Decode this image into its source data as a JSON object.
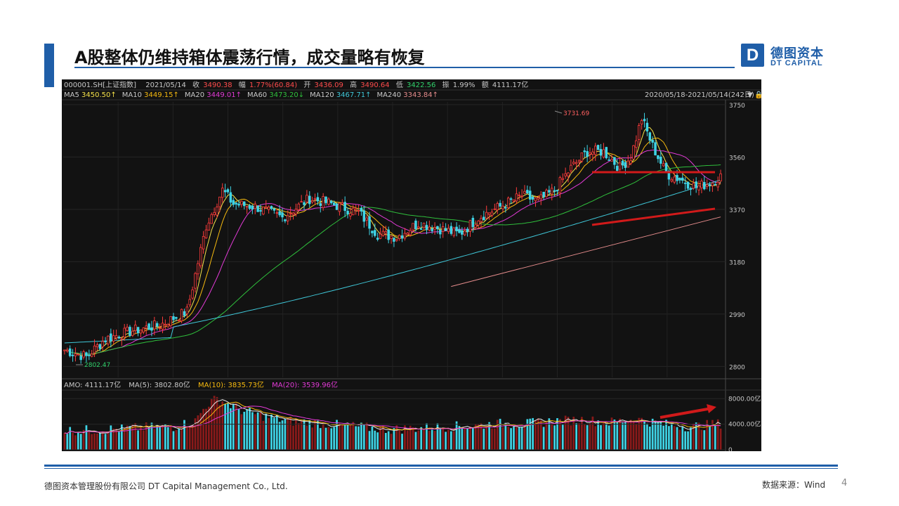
{
  "slide": {
    "title": "A股整体仍维持箱体震荡行情，成交量略有恢复",
    "logo_mark": "D",
    "logo_cn": "德图资本",
    "logo_en": "DT CAPITAL",
    "footer_company": "德图资本管理股份有限公司  DT Capital  Management  Co., Ltd.",
    "footer_source": "数据来源：Wind",
    "page_number": "4"
  },
  "chart_data": {
    "type": "candlestick",
    "header": {
      "code": "000001.SH[上证指数]",
      "date": "2021/05/14",
      "close_label": "收",
      "close": "3490.38",
      "change_label": "幅",
      "change": "1.77%(60.84)",
      "open_label": "开",
      "open": "3436.09",
      "high_label": "高",
      "high": "3490.64",
      "low_label": "低",
      "low": "3422.56",
      "amplitude_label": "振",
      "amplitude": "1.99%",
      "amount_label": "额",
      "amount": "4111.17亿"
    },
    "ma_legend": [
      {
        "name": "MA5",
        "value": "3450.50↑",
        "color": "#f5e24a"
      },
      {
        "name": "MA10",
        "value": "3449.15↑",
        "color": "#f5b90f"
      },
      {
        "name": "MA20",
        "value": "3449.01↑",
        "color": "#e23ad6"
      },
      {
        "name": "MA60",
        "value": "3473.20↓",
        "color": "#2fbf3c"
      },
      {
        "name": "MA120",
        "value": "3467.71↑",
        "color": "#3fc7d8"
      },
      {
        "name": "MA240",
        "value": "3343.84↑",
        "color": "#e58c8c"
      }
    ],
    "range_label": "2020/05/18-2021/05/14(242日)",
    "price_axis": {
      "ticks": [
        "3750",
        "3560",
        "3370",
        "3180",
        "2990",
        "2800"
      ],
      "min": 2760,
      "max": 3760
    },
    "annotations": {
      "high": "3731.69",
      "low": "2802.47"
    },
    "close_path": [
      [
        0,
        2860
      ],
      [
        8,
        2835
      ],
      [
        15,
        2900
      ],
      [
        25,
        2930
      ],
      [
        35,
        2950
      ],
      [
        45,
        3000
      ],
      [
        52,
        3310
      ],
      [
        58,
        3440
      ],
      [
        62,
        3390
      ],
      [
        70,
        3380
      ],
      [
        80,
        3340
      ],
      [
        90,
        3410
      ],
      [
        98,
        3390
      ],
      [
        108,
        3360
      ],
      [
        115,
        3280
      ],
      [
        122,
        3270
      ],
      [
        130,
        3320
      ],
      [
        138,
        3300
      ],
      [
        145,
        3280
      ],
      [
        152,
        3340
      ],
      [
        160,
        3380
      ],
      [
        168,
        3420
      ],
      [
        174,
        3400
      ],
      [
        180,
        3440
      ],
      [
        186,
        3520
      ],
      [
        192,
        3580
      ],
      [
        198,
        3580
      ],
      [
        204,
        3520
      ],
      [
        208,
        3560
      ],
      [
        212,
        3700
      ],
      [
        216,
        3600
      ],
      [
        221,
        3500
      ],
      [
        226,
        3480
      ],
      [
        232,
        3450
      ],
      [
        238,
        3470
      ],
      [
        241,
        3490
      ]
    ],
    "amo": {
      "label_total": "AMO: 4111.17亿",
      "label_ma5": "MA(5): 3802.80亿",
      "label_ma10": "MA(10): 3835.73亿",
      "label_ma20": "MA(20): 3539.96亿",
      "ticks": [
        "8000.00亿",
        "4000.00亿",
        "0"
      ],
      "max": 8800,
      "path": [
        [
          0,
          3000
        ],
        [
          10,
          3100
        ],
        [
          20,
          3300
        ],
        [
          30,
          3500
        ],
        [
          40,
          3600
        ],
        [
          48,
          4500
        ],
        [
          52,
          7000
        ],
        [
          56,
          8000
        ],
        [
          60,
          7200
        ],
        [
          66,
          6000
        ],
        [
          74,
          5200
        ],
        [
          82,
          4500
        ],
        [
          90,
          4300
        ],
        [
          100,
          3900
        ],
        [
          110,
          3500
        ],
        [
          120,
          3200
        ],
        [
          130,
          3400
        ],
        [
          140,
          3600
        ],
        [
          150,
          3800
        ],
        [
          160,
          4100
        ],
        [
          170,
          4100
        ],
        [
          180,
          4500
        ],
        [
          190,
          4700
        ],
        [
          200,
          4300
        ],
        [
          210,
          4800
        ],
        [
          220,
          4000
        ],
        [
          230,
          3600
        ],
        [
          241,
          4111
        ]
      ]
    }
  }
}
